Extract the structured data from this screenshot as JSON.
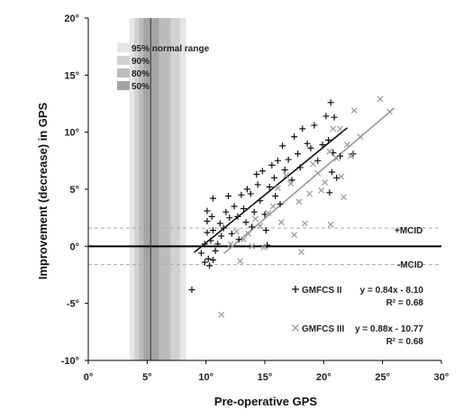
{
  "chart_data": {
    "type": "scatter",
    "xlabel": "Pre-operative GPS",
    "ylabel": "Improvement (decrease) in GPS",
    "xlim": [
      0,
      30
    ],
    "ylim": [
      -10,
      20
    ],
    "x_ticks": [
      "0°",
      "5°",
      "10°",
      "15°",
      "20°",
      "25°",
      "30°"
    ],
    "y_ticks": [
      "-10°",
      "-5°",
      "0°",
      "5°",
      "10°",
      "15°",
      "20°"
    ],
    "reference_line_x": 5.3,
    "normal_range_bands": [
      {
        "label": "95% normal range",
        "from": 3.5,
        "to": 8.3,
        "color": "#e6e6e6"
      },
      {
        "label": "90%",
        "from": 3.9,
        "to": 7.8,
        "color": "#d2d2d2"
      },
      {
        "label": "80%",
        "from": 4.3,
        "to": 7.0,
        "color": "#bcbcbc"
      },
      {
        "label": "50%",
        "from": 4.7,
        "to": 6.0,
        "color": "#a4a4a4"
      }
    ],
    "mcid": {
      "upper": 1.6,
      "lower": -1.6,
      "upper_label": "+MCID",
      "lower_label": "-MCID"
    },
    "series": [
      {
        "name": "GMFCS II",
        "marker": "+",
        "color": "#111111",
        "equation": "y = 0.84x - 8.10",
        "r2": "R² = 0.68",
        "fit": {
          "slope": 0.84,
          "intercept": -8.1,
          "x_range": [
            9.0,
            22.0
          ]
        },
        "points": [
          [
            8.8,
            -3.8
          ],
          [
            9.6,
            -0.6
          ],
          [
            9.9,
            -1.4
          ],
          [
            10.2,
            -1.1
          ],
          [
            10.3,
            -1.7
          ],
          [
            10.6,
            -1.2
          ],
          [
            10.8,
            -0.4
          ],
          [
            9.9,
            0.2
          ],
          [
            10.4,
            0.5
          ],
          [
            10.1,
            1.2
          ],
          [
            10.6,
            1.4
          ],
          [
            11.0,
            0.2
          ],
          [
            11.3,
            0.9
          ],
          [
            10.1,
            2.2
          ],
          [
            10.5,
            2.6
          ],
          [
            10.1,
            3.1
          ],
          [
            10.6,
            4.2
          ],
          [
            11.2,
            2.0
          ],
          [
            11.5,
            1.6
          ],
          [
            11.7,
            3.0
          ],
          [
            12.0,
            2.5
          ],
          [
            12.2,
            1.1
          ],
          [
            12.4,
            3.5
          ],
          [
            12.7,
            2.6
          ],
          [
            12.8,
            0.6
          ],
          [
            11.9,
            4.4
          ],
          [
            13.0,
            4.5
          ],
          [
            13.2,
            3.3
          ],
          [
            13.4,
            2.1
          ],
          [
            13.5,
            5.0
          ],
          [
            13.8,
            4.6
          ],
          [
            13.9,
            1.7
          ],
          [
            14.1,
            3.0
          ],
          [
            14.3,
            6.3
          ],
          [
            14.4,
            5.4
          ],
          [
            14.6,
            4.0
          ],
          [
            14.8,
            6.6
          ],
          [
            15.0,
            2.8
          ],
          [
            15.1,
            1.4
          ],
          [
            15.2,
            0.1
          ],
          [
            15.4,
            5.2
          ],
          [
            15.6,
            7.1
          ],
          [
            15.8,
            6.0
          ],
          [
            15.9,
            4.4
          ],
          [
            16.1,
            7.5
          ],
          [
            16.3,
            3.7
          ],
          [
            16.5,
            8.8
          ],
          [
            16.7,
            6.7
          ],
          [
            17.0,
            7.6
          ],
          [
            17.3,
            5.8
          ],
          [
            17.5,
            9.6
          ],
          [
            17.8,
            8.1
          ],
          [
            18.0,
            6.9
          ],
          [
            18.2,
            10.3
          ],
          [
            18.6,
            9.0
          ],
          [
            18.9,
            8.6
          ],
          [
            19.2,
            10.6
          ],
          [
            19.5,
            7.5
          ],
          [
            19.9,
            8.9
          ],
          [
            20.2,
            11.4
          ],
          [
            20.4,
            9.3
          ],
          [
            20.6,
            12.6
          ],
          [
            20.9,
            11.3
          ],
          [
            20.8,
            8.2
          ],
          [
            20.7,
            6.5
          ],
          [
            21.1,
            6.0
          ],
          [
            21.4,
            7.9
          ],
          [
            22.5,
            8.1
          ],
          [
            20.5,
            4.7
          ]
        ]
      },
      {
        "name": "GMFCS III",
        "marker": "×",
        "color": "#9a9a9a",
        "equation": "y = 0.88x - 10.77",
        "r2": "R² = 0.68",
        "fit": {
          "slope": 0.88,
          "intercept": -10.77,
          "x_range": [
            11.5,
            26.0
          ]
        },
        "points": [
          [
            11.3,
            -6.0
          ],
          [
            12.1,
            0.2
          ],
          [
            12.6,
            1.3
          ],
          [
            12.9,
            -1.3
          ],
          [
            13.2,
            0.6
          ],
          [
            13.6,
            1.1
          ],
          [
            13.9,
            0.0
          ],
          [
            14.2,
            2.4
          ],
          [
            14.6,
            1.8
          ],
          [
            14.9,
            -0.1
          ],
          [
            15.3,
            2.9
          ],
          [
            15.7,
            3.5
          ],
          [
            16.1,
            5.1
          ],
          [
            16.4,
            2.1
          ],
          [
            16.8,
            6.2
          ],
          [
            17.2,
            5.5
          ],
          [
            17.5,
            1.0
          ],
          [
            17.9,
            3.9
          ],
          [
            18.1,
            -0.5
          ],
          [
            18.4,
            2.0
          ],
          [
            18.8,
            4.6
          ],
          [
            19.1,
            7.2
          ],
          [
            19.5,
            6.4
          ],
          [
            19.8,
            4.9
          ],
          [
            20.1,
            5.6
          ],
          [
            20.5,
            8.3
          ],
          [
            20.8,
            10.3
          ],
          [
            20.6,
            1.9
          ],
          [
            21.1,
            7.7
          ],
          [
            21.5,
            6.1
          ],
          [
            21.7,
            4.3
          ],
          [
            22.0,
            8.9
          ],
          [
            22.3,
            7.9
          ],
          [
            22.6,
            11.9
          ],
          [
            23.1,
            9.6
          ],
          [
            24.8,
            12.9
          ],
          [
            25.6,
            11.8
          ],
          [
            21.4,
            10.3
          ]
        ]
      }
    ]
  }
}
